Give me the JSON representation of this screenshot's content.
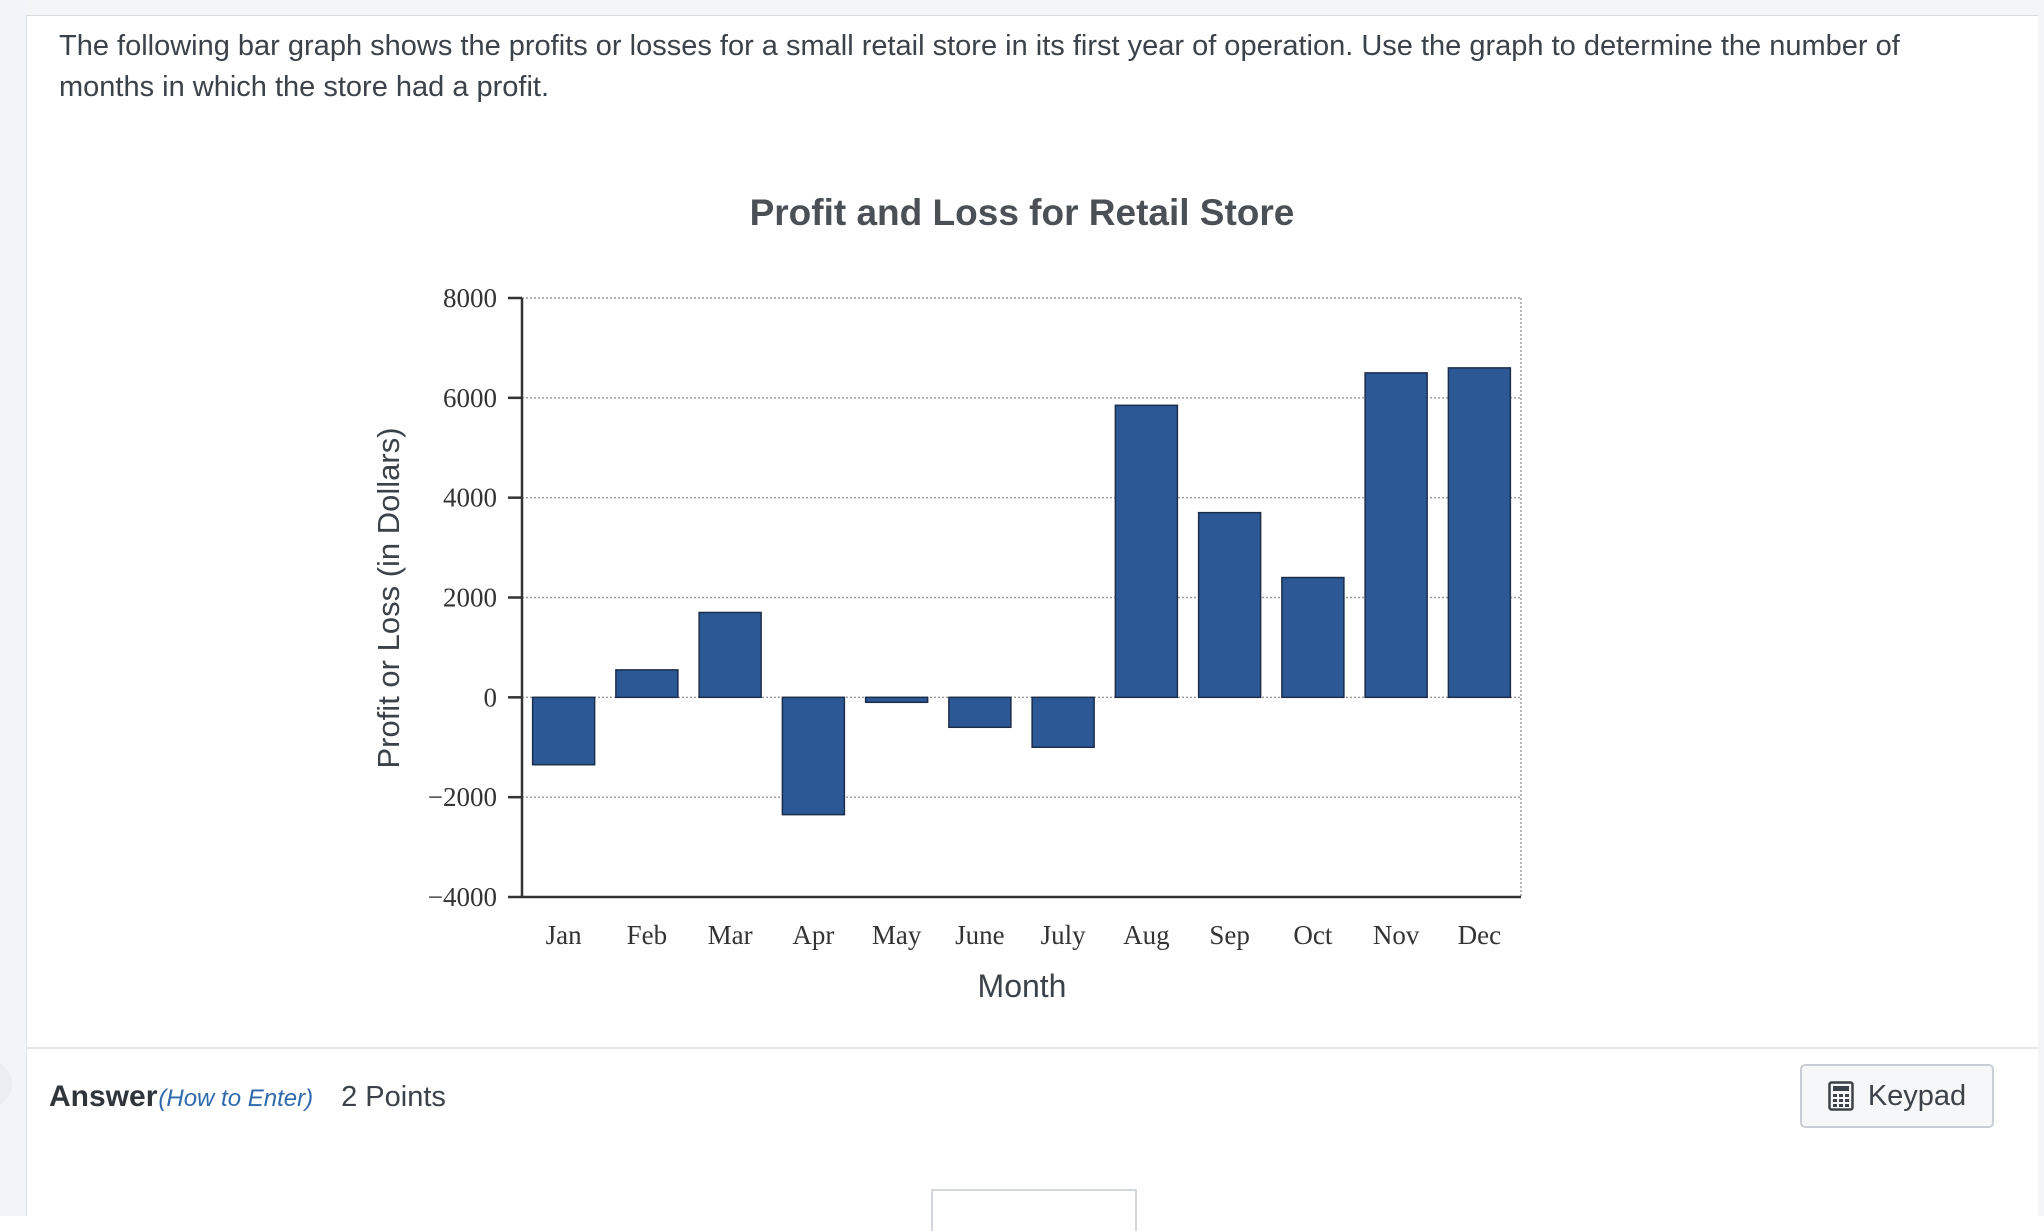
{
  "question": {
    "text": "The following bar graph shows the profits or losses for a small retail store in its first year of operation. Use the graph to determine the number of months in which the store had a profit."
  },
  "chart_data": {
    "type": "bar",
    "title": "Profit and Loss for Retail Store",
    "xlabel": "Month",
    "ylabel": "Profit or Loss (in Dollars)",
    "categories": [
      "Jan",
      "Feb",
      "Mar",
      "Apr",
      "May",
      "June",
      "July",
      "Aug",
      "Sep",
      "Oct",
      "Nov",
      "Dec"
    ],
    "values": [
      -1350,
      550,
      1700,
      -2350,
      -100,
      -600,
      -1000,
      5850,
      3700,
      2400,
      6500,
      6600
    ],
    "ylim": [
      -4000,
      8000
    ],
    "yticks": [
      -4000,
      -2000,
      0,
      2000,
      4000,
      6000,
      8000
    ],
    "ytick_labels": [
      "−4000",
      "−2000",
      "0",
      "2000",
      "4000",
      "6000",
      "8000"
    ],
    "grid": true,
    "bar_color": "#2c5896"
  },
  "answer": {
    "label": "Answer",
    "how_to": "(How to Enter)",
    "points": "2 Points"
  },
  "keypad": {
    "label": "Keypad",
    "icon": "calculator-icon"
  }
}
